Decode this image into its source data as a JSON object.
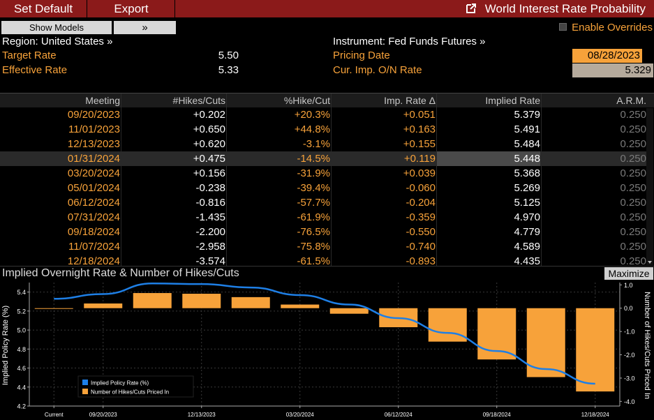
{
  "toolbar": {
    "set_default": "Set Default",
    "export": "Export",
    "title": "World Interest Rate Probability"
  },
  "controls": {
    "show_models": "Show Models",
    "expand": "»",
    "enable_overrides": "Enable Overrides"
  },
  "info": {
    "region": "Region: United States »",
    "instrument": "Instrument: Fed Funds Futures »",
    "target_rate_label": "Target Rate",
    "target_rate": "5.50",
    "effective_rate_label": "Effective Rate",
    "effective_rate": "5.33",
    "pricing_date_label": "Pricing Date",
    "pricing_date": "08/28/2023",
    "cur_imp_label": "Cur. Imp. O/N Rate",
    "cur_imp": "5.329"
  },
  "table": {
    "headers": [
      "Meeting",
      "#Hikes/Cuts",
      "%Hike/Cut",
      "Imp. Rate Δ",
      "Implied Rate",
      "A.R.M."
    ],
    "rows": [
      [
        "09/20/2023",
        "+0.202",
        "+20.3%",
        "+0.051",
        "5.379",
        "0.250"
      ],
      [
        "11/01/2023",
        "+0.650",
        "+44.8%",
        "+0.163",
        "5.491",
        "0.250"
      ],
      [
        "12/13/2023",
        "+0.620",
        "-3.1%",
        "+0.155",
        "5.484",
        "0.250"
      ],
      [
        "01/31/2024",
        "+0.475",
        "-14.5%",
        "+0.119",
        "5.448",
        "0.250"
      ],
      [
        "03/20/2024",
        "+0.156",
        "-31.9%",
        "+0.039",
        "5.368",
        "0.250"
      ],
      [
        "05/01/2024",
        "-0.238",
        "-39.4%",
        "-0.060",
        "5.269",
        "0.250"
      ],
      [
        "06/12/2024",
        "-0.816",
        "-57.7%",
        "-0.204",
        "5.125",
        "0.250"
      ],
      [
        "07/31/2024",
        "-1.435",
        "-61.9%",
        "-0.359",
        "4.970",
        "0.250"
      ],
      [
        "09/18/2024",
        "-2.200",
        "-76.5%",
        "-0.550",
        "4.779",
        "0.250"
      ],
      [
        "11/07/2024",
        "-2.958",
        "-75.8%",
        "-0.740",
        "4.589",
        "0.250"
      ],
      [
        "12/18/2024",
        "-3.574",
        "-61.5%",
        "-0.893",
        "4.435",
        "0.250"
      ]
    ],
    "selected_row": 3
  },
  "chart": {
    "title": "Implied Overnight Rate & Number of Hikes/Cuts",
    "maximize": "Maximize"
  },
  "colors": {
    "accent": "#f7a23a",
    "brand_bar": "#8b1a1a",
    "line": "#1e7fe6"
  },
  "chart_data": {
    "type": "bar",
    "categories": [
      "Current",
      "09/20/2023",
      "11/01/2023",
      "12/13/2023",
      "01/31/2024",
      "03/20/2024",
      "05/01/2024",
      "06/12/2024",
      "07/31/2024",
      "09/18/2024",
      "11/07/2024",
      "12/18/2024"
    ],
    "x_tick_labels": [
      "Current",
      "09/20/2023",
      "12/13/2023",
      "03/20/2024",
      "06/12/2024",
      "09/18/2024",
      "12/18/2024"
    ],
    "series": [
      {
        "name": "Implied Policy Rate (%)",
        "type": "line",
        "axis": "left",
        "values": [
          5.329,
          5.379,
          5.491,
          5.484,
          5.448,
          5.368,
          5.269,
          5.125,
          4.97,
          4.779,
          4.589,
          4.435
        ]
      },
      {
        "name": "Number of Hikes/Cuts Priced In",
        "type": "bar",
        "axis": "right",
        "values": [
          0.0,
          0.202,
          0.65,
          0.62,
          0.475,
          0.156,
          -0.238,
          -0.816,
          -1.435,
          -2.2,
          -2.958,
          -3.574
        ]
      }
    ],
    "ylabel": "Implied Policy Rate (%)",
    "y2label": "Number of Hikes/Cuts Priced In",
    "ylim": [
      4.2,
      5.5
    ],
    "y2lim": [
      -4.2,
      1.1
    ],
    "yticks": [
      "5.4",
      "5.2",
      "5.0",
      "4.8",
      "4.6",
      "4.4",
      "4.2"
    ],
    "y2ticks": [
      "1.0",
      "0.0",
      "-1.0",
      "-2.0",
      "-3.0",
      "-4.0"
    ],
    "legend": "bottom-left",
    "grid": true
  }
}
